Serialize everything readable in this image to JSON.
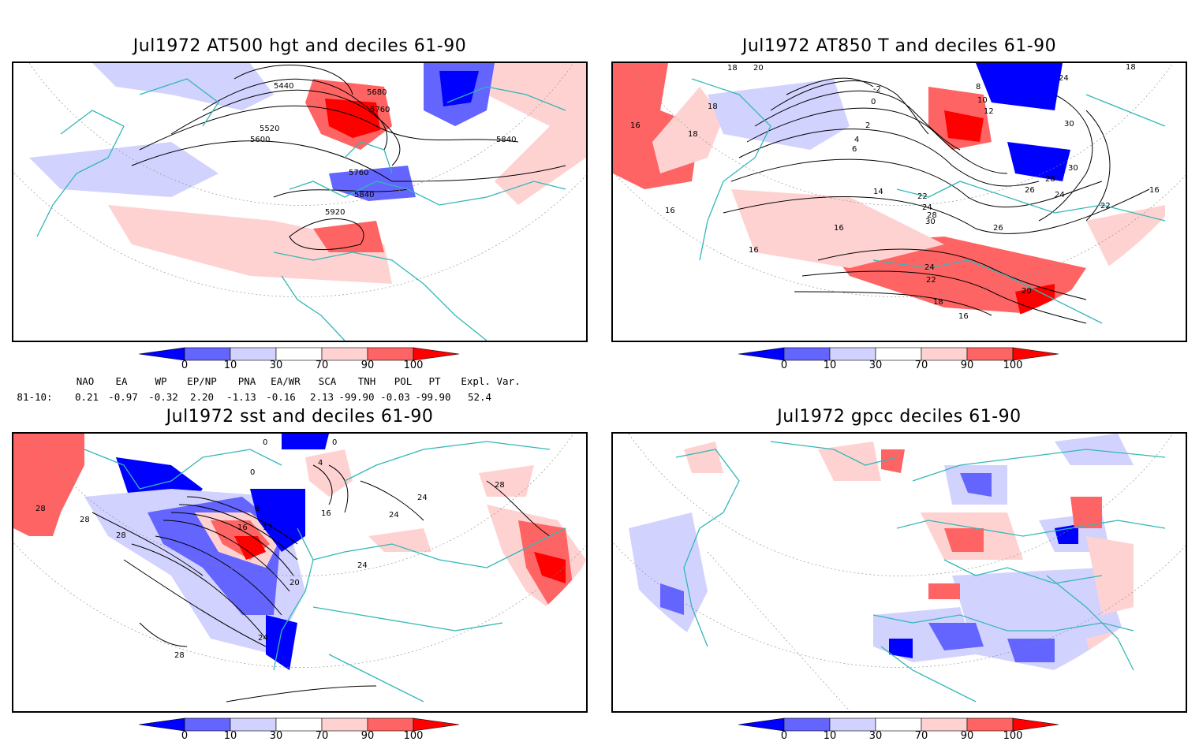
{
  "panels": [
    {
      "title": "Jul1972 AT500 hgt and deciles 61-90",
      "contour_labels": [
        "5440",
        "5520",
        "5600",
        "5680",
        "5760",
        "5760",
        "5840",
        "5840",
        "5920"
      ]
    },
    {
      "title": "Jul1972 AT850 T and deciles 61-90",
      "contour_labels": [
        "18",
        "20",
        "18",
        "18",
        "16",
        "18",
        "-2",
        "0",
        "2",
        "4",
        "6",
        "8",
        "10",
        "12",
        "14",
        "16",
        "16",
        "22",
        "24",
        "28",
        "30",
        "26",
        "24",
        "22",
        "20",
        "16",
        "18",
        "24",
        "30",
        "30",
        "28",
        "26",
        "24",
        "22",
        "16",
        "16"
      ]
    },
    {
      "title": "Jul1972 sst and deciles 61-90",
      "contour_labels": [
        "0",
        "0",
        "4",
        "0",
        "8",
        "12",
        "16",
        "16",
        "20",
        "24",
        "24",
        "24",
        "28",
        "28",
        "28",
        "28",
        "28",
        "24"
      ]
    },
    {
      "title": "Jul1972 gpcc deciles 61-90",
      "contour_labels": []
    }
  ],
  "colorbar": {
    "labels": [
      "0",
      "10",
      "30",
      "70",
      "90",
      "100"
    ],
    "colors": [
      "#0000ff",
      "#6464ff",
      "#d2d2ff",
      "#ffffff",
      "#ffd2d2",
      "#ff6464",
      "#ff0000"
    ]
  },
  "map_colors": {
    "coast": "#33b7b7",
    "red_strong": "#ff0000",
    "red_mid": "#ff6464",
    "red_light": "#ffd2d2",
    "blue_strong": "#0000ff",
    "blue_mid": "#6464ff",
    "blue_light": "#d2d2ff"
  },
  "indices": {
    "period": "81-10:",
    "headers": [
      "NAO",
      "EA",
      "WP",
      "EP/NP",
      "PNA",
      "EA/WR",
      "SCA",
      "TNH",
      "POL",
      "PT",
      "Expl. Var."
    ],
    "values": [
      "0.21",
      "-0.97",
      "-0.32",
      "2.20",
      "-1.13",
      "-0.16",
      "2.13",
      "-99.90",
      "-0.03",
      "-99.90",
      "52.4"
    ]
  }
}
